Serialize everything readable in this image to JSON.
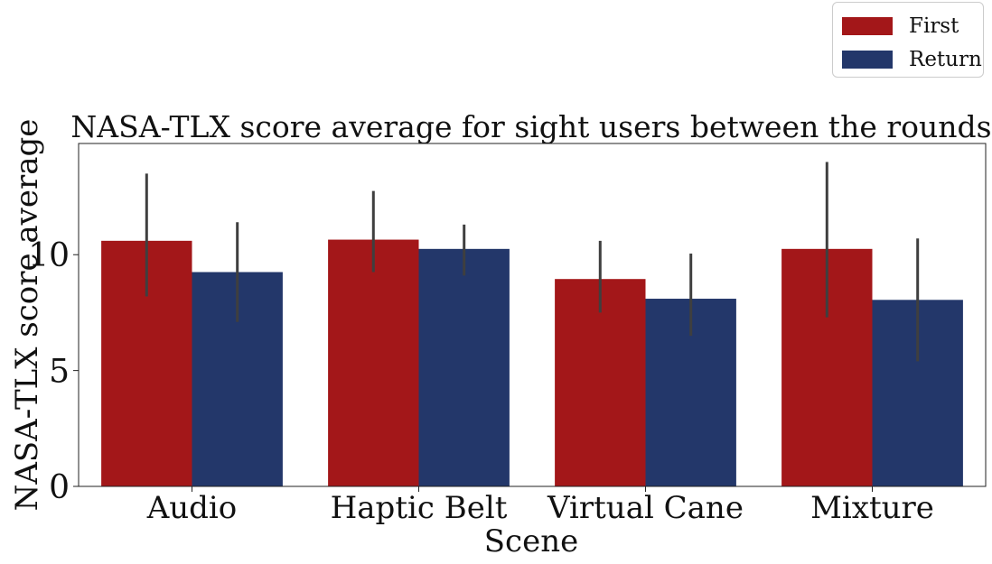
{
  "chart_data": {
    "type": "bar",
    "title": "NASA-TLX score average for sight users between the rounds",
    "xlabel": "Scene",
    "ylabel": "NASA-TLX score average",
    "categories": [
      "Audio",
      "Haptic Belt",
      "Virtual Cane",
      "Mixture"
    ],
    "series": [
      {
        "name": "First",
        "color": "#a31719",
        "values": [
          10.6,
          10.65,
          8.95,
          10.25
        ],
        "ci_low": [
          8.2,
          9.25,
          7.5,
          7.3
        ],
        "ci_high": [
          13.5,
          12.75,
          10.6,
          14.0
        ]
      },
      {
        "name": "Return",
        "color": "#23376a",
        "values": [
          9.25,
          10.25,
          8.1,
          8.05
        ],
        "ci_low": [
          7.1,
          9.1,
          6.5,
          5.4
        ],
        "ci_high": [
          11.4,
          11.3,
          10.05,
          10.7
        ]
      }
    ],
    "ylim": [
      0,
      14.8
    ],
    "yticks": [
      0,
      5,
      10
    ],
    "grid": false,
    "legend": "top-right"
  }
}
